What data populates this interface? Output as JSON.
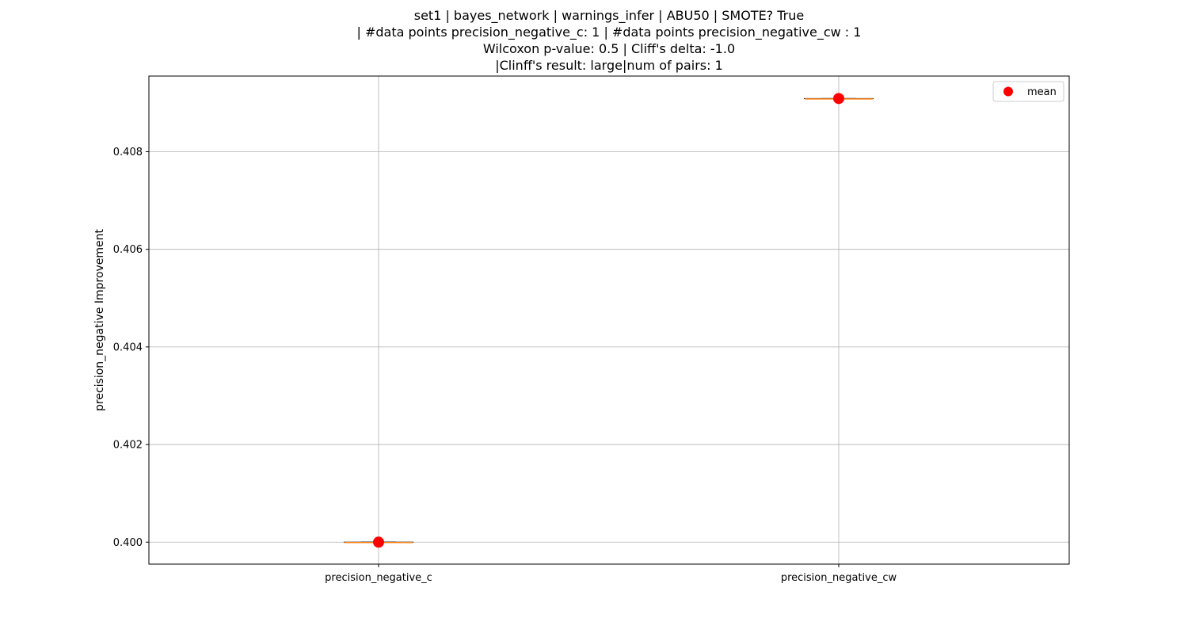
{
  "chart_data": {
    "type": "box",
    "title_lines": [
      "set1 | bayes_network | warnings_infer | ABU50 | SMOTE? True",
      "| #data points precision_negative_c: 1 | #data points precision_negative_cw : 1",
      "Wilcoxon p-value: 0.5 | Cliff's delta: -1.0",
      "|Clinff's result: large|num of pairs: 1"
    ],
    "xlabel": "",
    "ylabel": "precision_negative Improvement",
    "categories": [
      "precision_negative_c",
      "precision_negative_cw"
    ],
    "values": [
      0.4,
      0.40909
    ],
    "means": [
      0.4,
      0.40909
    ],
    "ylim": [
      0.39955,
      0.40955
    ],
    "yticks": [
      0.4,
      0.402,
      0.404,
      0.406,
      0.408
    ],
    "ytick_labels": [
      "0.400",
      "0.402",
      "0.404",
      "0.406",
      "0.408"
    ],
    "grid": true,
    "legend": {
      "entries": [
        "mean"
      ],
      "placement": "top-right"
    },
    "colors": {
      "median": "#ff7f0e",
      "mean": "#ff0000",
      "grid": "#b0b0b0",
      "axes": "#000000"
    }
  }
}
